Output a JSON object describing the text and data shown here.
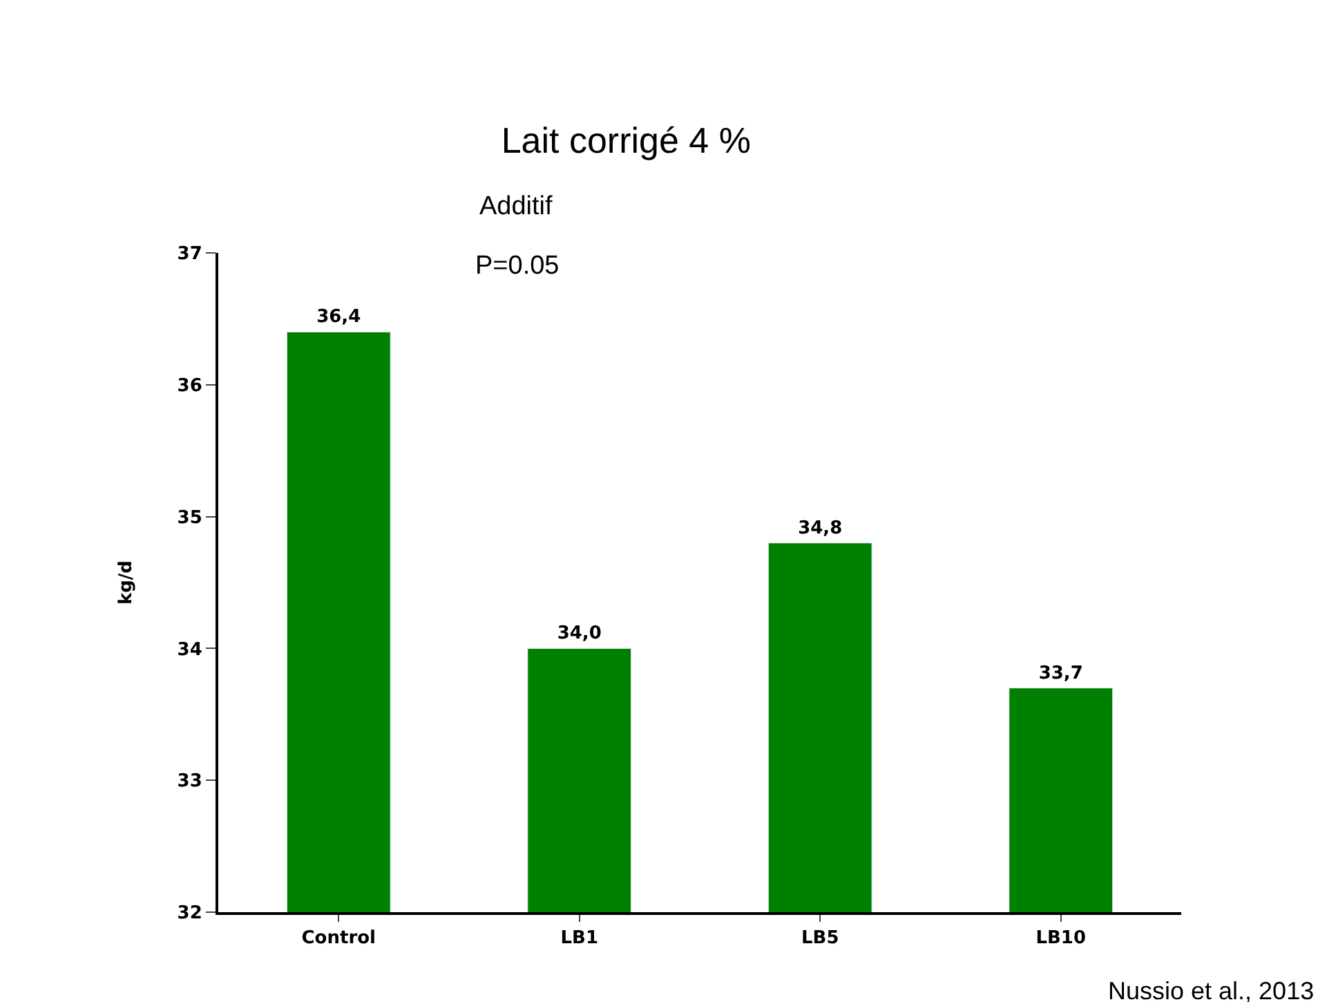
{
  "chart_data": {
    "type": "bar",
    "title": "Lait corrigé 4 %",
    "ylabel": "kg/d",
    "categories": [
      "Control",
      "LB1",
      "LB5",
      "LB10"
    ],
    "values": [
      36.4,
      34.0,
      34.8,
      33.7
    ],
    "value_labels": [
      "36,4",
      "34,0",
      "34,8",
      "33,7"
    ],
    "color": "#008000",
    "ylim": [
      32,
      37
    ],
    "yticks": [
      32,
      33,
      34,
      35,
      36,
      37
    ],
    "annotations": [
      "Additif",
      "P=0.05",
      "Nussio et al., 2013"
    ]
  }
}
